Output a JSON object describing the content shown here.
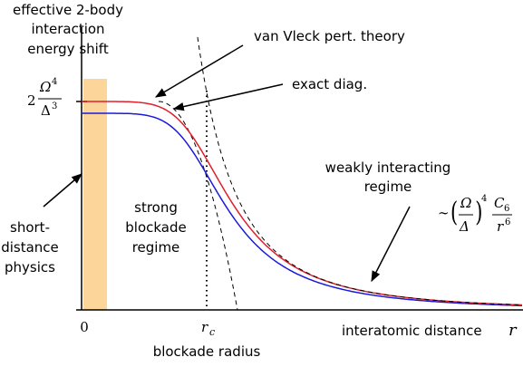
{
  "y_label_top": [
    "effective 2-body",
    "interaction",
    "energy shift"
  ],
  "y_value": {
    "coef": "2",
    "num": "Ω",
    "num_power": "4",
    "den": "Δ",
    "den_power": "3"
  },
  "annotations": {
    "van_vleck": "van Vleck pert. theory",
    "exact": "exact diag.",
    "weak": [
      "weakly interacting",
      "regime"
    ],
    "strong": [
      "strong",
      "blockade",
      "regime"
    ],
    "short": [
      "short-",
      "distance",
      "physics"
    ]
  },
  "formula": {
    "prefix": "∼",
    "num": "Ω",
    "den": "Δ",
    "power": "4",
    "num2": "C",
    "num2_sub": "6",
    "den2": "r",
    "den2_power": "6"
  },
  "x_origin": "0",
  "rc": {
    "base": "r",
    "sub": "c"
  },
  "rc_label": "blockade radius",
  "x_label": {
    "text": "interatomic distance",
    "var": "r"
  }
}
